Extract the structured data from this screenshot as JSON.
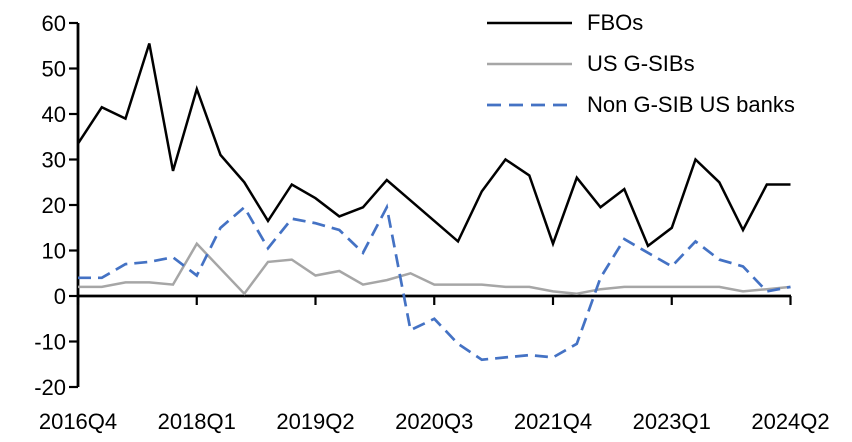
{
  "chart_data": {
    "type": "line",
    "title": "",
    "xlabel": "",
    "ylabel": "",
    "x": [
      "2016Q4",
      "2017Q1",
      "2017Q2",
      "2017Q3",
      "2017Q4",
      "2018Q1",
      "2018Q2",
      "2018Q3",
      "2018Q4",
      "2019Q1",
      "2019Q2",
      "2019Q3",
      "2019Q4",
      "2020Q1",
      "2020Q2",
      "2020Q3",
      "2020Q4",
      "2021Q1",
      "2021Q2",
      "2021Q3",
      "2021Q4",
      "2022Q1",
      "2022Q2",
      "2022Q3",
      "2022Q4",
      "2023Q1",
      "2023Q2",
      "2023Q3",
      "2023Q4",
      "2024Q1",
      "2024Q2"
    ],
    "x_tick_labels": [
      "2016Q4",
      "2018Q1",
      "2019Q2",
      "2020Q3",
      "2021Q4",
      "2023Q1",
      "2024Q2"
    ],
    "y_ticks": [
      60,
      50,
      40,
      30,
      20,
      10,
      0,
      -10,
      -20
    ],
    "ylim": [
      -20,
      60
    ],
    "grid": false,
    "legend_position": "top-right",
    "series": [
      {
        "name": "FBOs",
        "color": "#000000",
        "style": "solid",
        "values": [
          33.5,
          41.5,
          39,
          55.5,
          27.5,
          45.5,
          31,
          25,
          16.5,
          24.5,
          21.5,
          17.5,
          19.5,
          25.5,
          21,
          16.5,
          12,
          23,
          30,
          26.5,
          11.5,
          26,
          19.5,
          23.5,
          11,
          15,
          30,
          25,
          14.5,
          24.5,
          24.5
        ]
      },
      {
        "name": "US G-SIBs",
        "color": "#A6A6A6",
        "style": "solid",
        "values": [
          2,
          2,
          3,
          3,
          2.5,
          11.5,
          6,
          0.5,
          7.5,
          8,
          4.5,
          5.5,
          2.5,
          3.5,
          5,
          2.5,
          2.5,
          2.5,
          2,
          2,
          1,
          0.5,
          1.5,
          2,
          2,
          2,
          2,
          2,
          1,
          1.5,
          2
        ]
      },
      {
        "name": "Non G-SIB US banks",
        "color": "#4472C4",
        "style": "dashed",
        "values": [
          4,
          4,
          7,
          7.5,
          8.5,
          4.5,
          15,
          19.5,
          10.5,
          17,
          16,
          14.5,
          9.5,
          19.5,
          -7.5,
          -5,
          -10.5,
          -14,
          -13.5,
          -13,
          -13.5,
          -10.5,
          4,
          12.5,
          9.5,
          6.5,
          12,
          8,
          6.5,
          1,
          2
        ]
      }
    ]
  },
  "axis_color": "#000000"
}
